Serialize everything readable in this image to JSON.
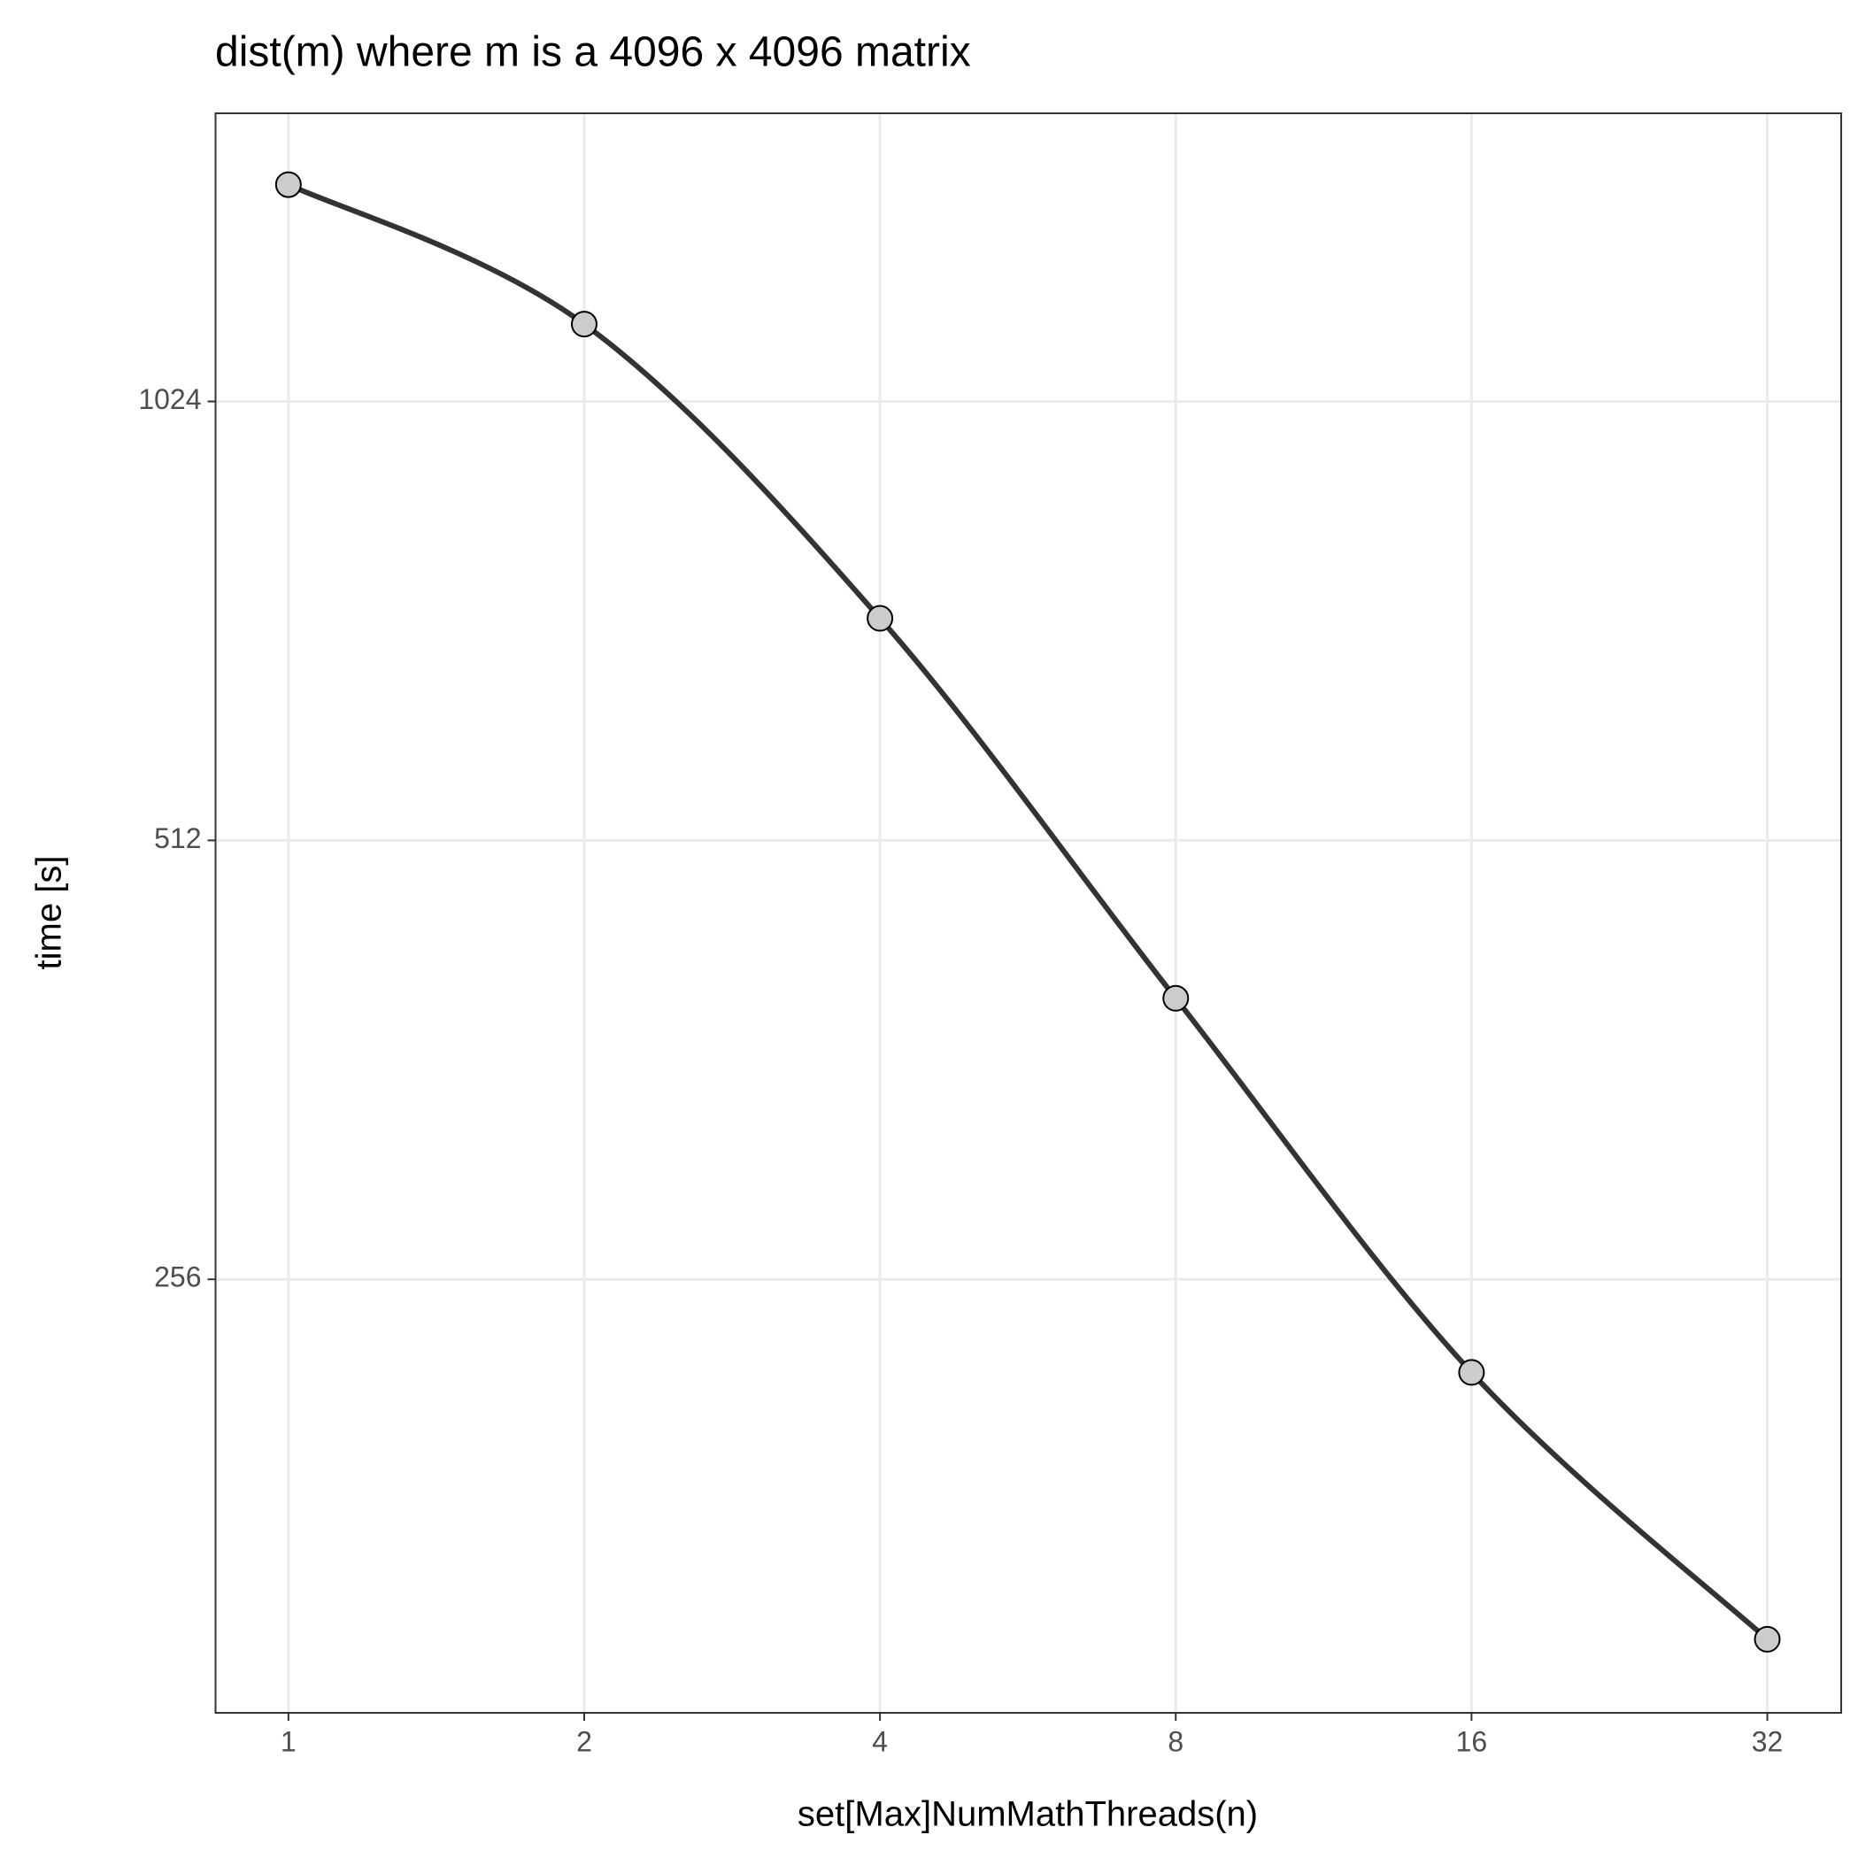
{
  "chart_data": {
    "type": "line",
    "title": "dist(m) where m is a 4096 x 4096 matrix",
    "xlabel": "set[Max]NumMathThreads(n)",
    "ylabel": "time [s]",
    "x": [
      1,
      2,
      4,
      8,
      16,
      32
    ],
    "series": [
      {
        "name": "time",
        "color": "#333333",
        "values": [
          1442,
          1157,
          727,
          399,
          221,
          145
        ]
      }
    ],
    "xscale": "log2",
    "yscale": "log2",
    "xlim": [
      0.843,
      38.05
    ],
    "ylim": [
      129.1,
      1614
    ],
    "xticks": [
      1,
      2,
      4,
      8,
      16,
      32
    ],
    "yticks": [
      256,
      512,
      1024
    ],
    "grid": true
  }
}
